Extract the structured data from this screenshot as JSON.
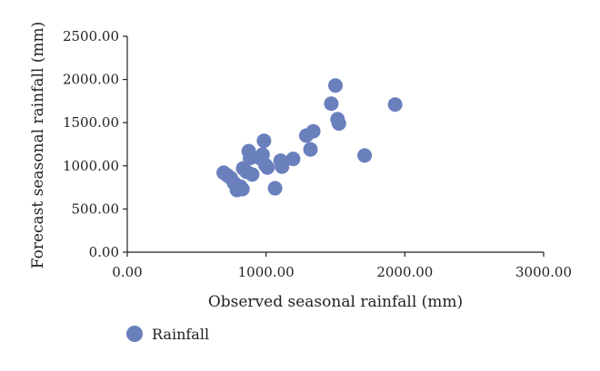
{
  "chart_data": {
    "type": "scatter",
    "xlabel": "Observed seasonal rainfall (mm)",
    "ylabel": "Forecast seasonal rainfall (mm)",
    "xlim": [
      0,
      3000
    ],
    "ylim": [
      0,
      2500
    ],
    "x_ticks": [
      "0.00",
      "1000.00",
      "2000.00",
      "3000.00"
    ],
    "y_ticks": [
      "0.00",
      "500.00",
      "1000.00",
      "1500.00",
      "2000.00",
      "2500.00"
    ],
    "grid": false,
    "legend": "bottom-left",
    "color": "#6a80bd",
    "series": [
      {
        "name": "Rainfall",
        "points": [
          {
            "x": 695,
            "y": 920
          },
          {
            "x": 720,
            "y": 890
          },
          {
            "x": 745,
            "y": 860
          },
          {
            "x": 770,
            "y": 800
          },
          {
            "x": 790,
            "y": 720
          },
          {
            "x": 815,
            "y": 760
          },
          {
            "x": 830,
            "y": 730
          },
          {
            "x": 835,
            "y": 970
          },
          {
            "x": 860,
            "y": 930
          },
          {
            "x": 875,
            "y": 1170
          },
          {
            "x": 885,
            "y": 1090
          },
          {
            "x": 900,
            "y": 900
          },
          {
            "x": 955,
            "y": 1090
          },
          {
            "x": 975,
            "y": 1130
          },
          {
            "x": 985,
            "y": 1290
          },
          {
            "x": 995,
            "y": 1010
          },
          {
            "x": 1010,
            "y": 980
          },
          {
            "x": 1065,
            "y": 740
          },
          {
            "x": 1105,
            "y": 1060
          },
          {
            "x": 1115,
            "y": 990
          },
          {
            "x": 1195,
            "y": 1080
          },
          {
            "x": 1290,
            "y": 1350
          },
          {
            "x": 1320,
            "y": 1190
          },
          {
            "x": 1340,
            "y": 1400
          },
          {
            "x": 1470,
            "y": 1720
          },
          {
            "x": 1500,
            "y": 1930
          },
          {
            "x": 1515,
            "y": 1540
          },
          {
            "x": 1525,
            "y": 1490
          },
          {
            "x": 1710,
            "y": 1120
          },
          {
            "x": 1930,
            "y": 1710
          }
        ]
      }
    ]
  }
}
